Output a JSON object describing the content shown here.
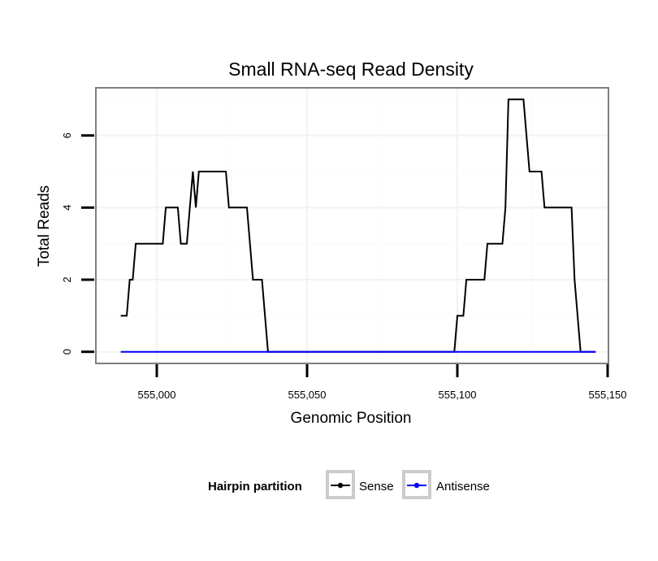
{
  "chart_data": {
    "type": "line",
    "title": "Small RNA-seq Read Density",
    "xlabel": "Genomic Position",
    "ylabel": "Total Reads",
    "xlim": [
      554980,
      555150
    ],
    "ylim": [
      -0.3,
      7.3
    ],
    "x_ticks": [
      555000,
      555050,
      555100,
      555150
    ],
    "x_tick_labels": [
      "555,000",
      "555,050",
      "555,100",
      "555,150"
    ],
    "y_ticks": [
      0,
      2,
      4,
      6
    ],
    "y_tick_labels": [
      "0",
      "2",
      "4",
      "6"
    ],
    "grid": true,
    "legend": {
      "title": "Hairpin partition",
      "position": "bottom",
      "entries": [
        "Sense",
        "Antisense"
      ]
    },
    "series": [
      {
        "name": "Sense",
        "color": "#000000",
        "x": [
          554988,
          554990,
          554991,
          554992,
          554993,
          555002,
          555003,
          555007,
          555008,
          555010,
          555011,
          555012,
          555013,
          555014,
          555023,
          555024,
          555030,
          555032,
          555035,
          555037,
          555099,
          555100,
          555102,
          555103,
          555109,
          555110,
          555115,
          555116,
          555117,
          555122,
          555124,
          555128,
          555129,
          555138,
          555139,
          555141,
          555146
        ],
        "y": [
          1,
          1,
          2,
          2,
          3,
          3,
          4,
          4,
          3,
          3,
          4,
          5,
          4,
          5,
          5,
          4,
          4,
          2,
          2,
          0,
          0,
          1,
          1,
          2,
          2,
          3,
          3,
          4,
          7,
          7,
          5,
          5,
          4,
          4,
          2,
          0,
          0
        ]
      },
      {
        "name": "Antisense",
        "color": "#0000ff",
        "x": [
          554988,
          555146
        ],
        "y": [
          0,
          0
        ]
      }
    ]
  }
}
